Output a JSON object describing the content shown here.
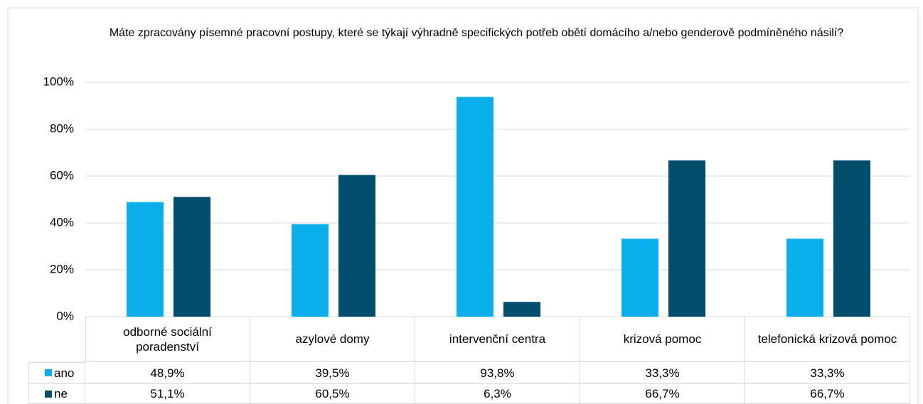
{
  "chart_data": {
    "type": "bar",
    "title": "Máte zpracovány písemné pracovní postupy, které se týkají výhradně specifických potřeb obětí domácího a/nebo genderově podmíněného násilí?",
    "categories": [
      "odborné sociální poradenství",
      "azylové domy",
      "intervenční centra",
      "krizová pomoc",
      "telefonická krizová pomoc"
    ],
    "series": [
      {
        "name": "ano",
        "color": "#0aaeea",
        "values": [
          48.9,
          39.5,
          93.8,
          33.3,
          33.3
        ],
        "value_labels": [
          "48,9%",
          "39,5%",
          "93,8%",
          "33,3%",
          "33,3%"
        ]
      },
      {
        "name": "ne",
        "color": "#014d6b",
        "values": [
          51.1,
          60.5,
          6.3,
          66.7,
          66.7
        ],
        "value_labels": [
          "51,1%",
          "60,5%",
          "6,3%",
          "66,7%",
          "66,7%"
        ]
      }
    ],
    "ylim": [
      0,
      100
    ],
    "yticks": [
      {
        "value": 0,
        "label": "0%"
      },
      {
        "value": 20,
        "label": "20%"
      },
      {
        "value": 40,
        "label": "40%"
      },
      {
        "value": 60,
        "label": "60%"
      },
      {
        "value": 80,
        "label": "80%"
      },
      {
        "value": 100,
        "label": "100%"
      }
    ],
    "grid": true
  }
}
